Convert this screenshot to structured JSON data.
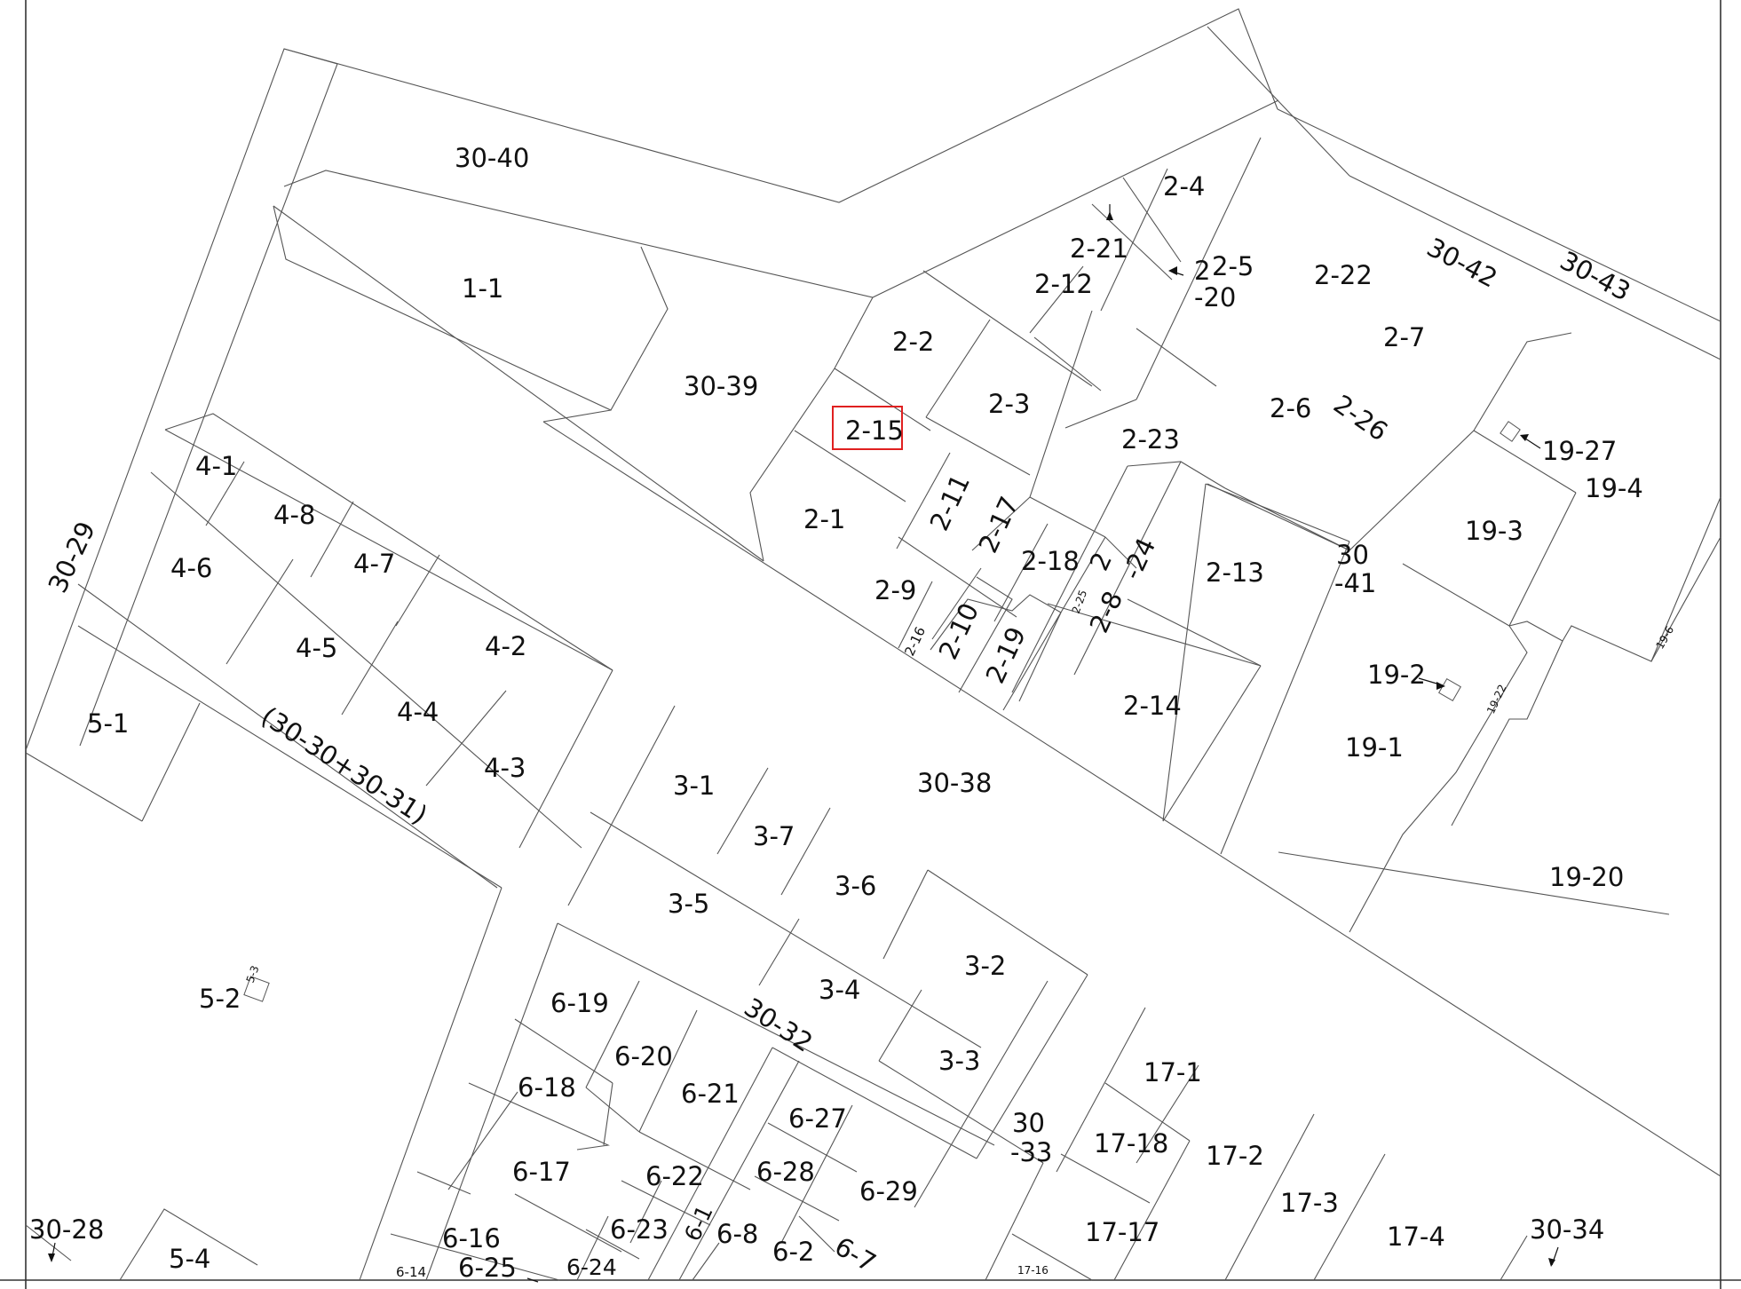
{
  "map": {
    "highlight_color": "#e02020",
    "highlighted_parcel": "2-15",
    "parcels": {
      "p30_40": "30-40",
      "p1_1": "1-1",
      "p30_39": "30-39",
      "p30_29": "30-29",
      "p4_1": "4-1",
      "p4_8": "4-8",
      "p4_6": "4-6",
      "p4_7": "4-7",
      "p4_5": "4-5",
      "p4_2": "4-2",
      "p4_4": "4-4",
      "p4_3": "4-3",
      "p5_1": "5-1",
      "p30_30": "(30-30+30-31)",
      "p5_2": "5-2",
      "p5_3": "5-3",
      "p30_28": "30-28",
      "p5_4": "5-4",
      "p2_4": "2-4",
      "p2_21": "2-21",
      "p2_12": "2-12",
      "p2_5": "2-5",
      "p2_20a": "2",
      "p2_20b": "-20",
      "p2_22": "2-22",
      "p30_42": "30-42",
      "p30_43": "30-43",
      "p2_2": "2-2",
      "p2_3": "2-3",
      "p2_7": "2-7",
      "p2_6": "2-6",
      "p2_26": "2-26",
      "p2_15": "2-15",
      "p2_23": "2-23",
      "p19_27": "19-27",
      "p19_4": "19-4",
      "p2_1": "2-1",
      "p2_11": "2-11",
      "p2_17": "2-17",
      "p2_18": "2-18",
      "p2_24a": "2",
      "p2_24b": "-24",
      "p2_13": "2-13",
      "p30_41a": "30",
      "p30_41b": "-41",
      "p19_3": "19-3",
      "p2_9": "2-9",
      "p2_16": "2-16",
      "p2_10": "2-10",
      "p2_19": "2-19",
      "p2_25": "2-25",
      "p2_8": "2-8",
      "p2_14": "2-14",
      "p19_2": "19-2",
      "p19_22": "19-22",
      "p19_6": "19-6",
      "p19_1": "19-1",
      "p30_38": "30-38",
      "p19_20": "19-20",
      "p3_1": "3-1",
      "p3_7": "3-7",
      "p3_6": "3-6",
      "p3_5": "3-5",
      "p3_2": "3-2",
      "p3_4": "3-4",
      "p3_3": "3-3",
      "p6_19": "6-19",
      "p30_32": "30-32",
      "p6_20": "6-20",
      "p6_18": "6-18",
      "p6_21": "6-21",
      "p6_27": "6-27",
      "p6_17": "6-17",
      "p6_28": "6-28",
      "p6_29": "6-29",
      "p6_22": "6-22",
      "p6_23": "6-23",
      "p6_1": "6-1",
      "p6_8": "6-8",
      "p6_2": "6-2",
      "p6_7": "6-7",
      "p6_16": "6-16",
      "p6_14": "6-14",
      "p6_25": "6-25",
      "p6_24": "6-24",
      "p30_33a": "30",
      "p30_33b": "-33",
      "p17_1": "17-1",
      "p17_18": "17-18",
      "p17_2": "17-2",
      "p17_3": "17-3",
      "p17_17": "17-17",
      "p17_4": "17-4",
      "p30_34": "30-34",
      "p17_16": "17-16"
    }
  }
}
